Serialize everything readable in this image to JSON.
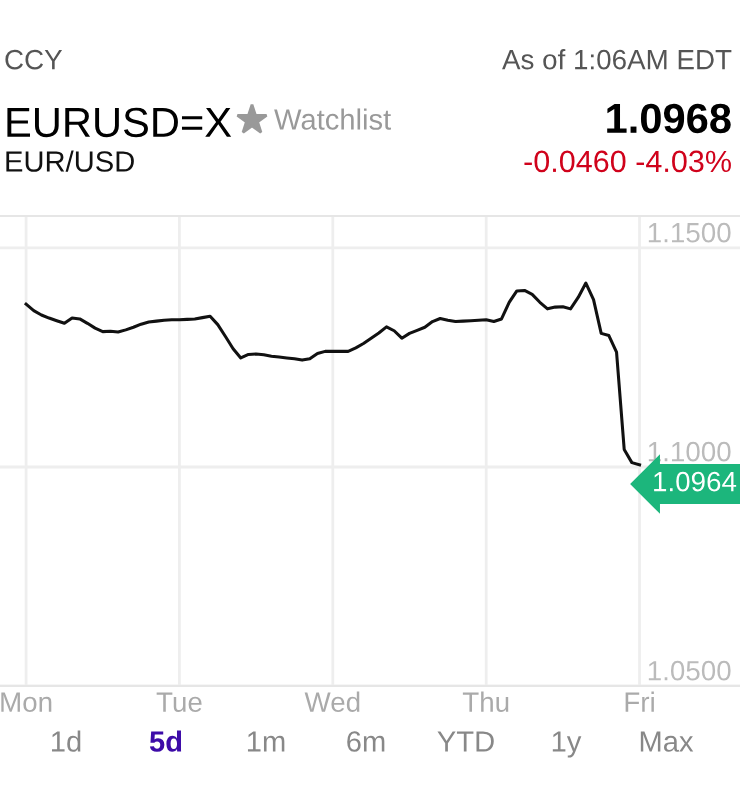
{
  "chart_data": {
    "type": "line",
    "title": "EURUSD=X",
    "subtitle": "EUR/USD",
    "annotations": [
      "CCY",
      "Watchlist",
      "As of 1:06AM EDT",
      "1.0968",
      "-0.0460 -4.03%",
      "1d",
      "5d",
      "1m",
      "6m",
      "YTD",
      "1y",
      "Max",
      "1.0964"
    ],
    "categories": [
      "Mon",
      null,
      null,
      null,
      null,
      null,
      null,
      null,
      null,
      null,
      null,
      null,
      null,
      null,
      null,
      null,
      null,
      null,
      null,
      null,
      "Tue",
      null,
      null,
      null,
      null,
      null,
      null,
      null,
      null,
      null,
      null,
      null,
      null,
      null,
      null,
      null,
      null,
      null,
      null,
      null,
      "Wed",
      null,
      null,
      null,
      null,
      null,
      null,
      null,
      null,
      null,
      null,
      null,
      null,
      null,
      null,
      null,
      null,
      null,
      null,
      null,
      "Thu",
      null,
      null,
      null,
      null,
      null,
      null,
      null,
      null,
      null,
      null,
      null,
      null,
      null,
      null,
      null,
      null,
      null,
      null,
      null,
      "Fri",
      null,
      null,
      null,
      null,
      null,
      null,
      null,
      null,
      null,
      null,
      null,
      null,
      null
    ],
    "series": [
      {
        "color": "#111111",
        "values": [
          1.1372,
          1.1357,
          1.1347,
          1.134,
          1.1334,
          1.1328,
          1.134,
          1.1338,
          1.1328,
          1.1317,
          1.1309,
          1.131,
          1.1308,
          1.1313,
          1.1319,
          1.1326,
          1.1331,
          1.1333,
          1.1335,
          1.1336,
          1.1336,
          1.1337,
          1.1338,
          1.1341,
          1.1344,
          1.1325,
          1.1298,
          1.127,
          1.1249,
          1.1257,
          1.1258,
          1.1256,
          1.1253,
          1.1251,
          1.1249,
          1.1247,
          1.1244,
          1.1247,
          1.1259,
          1.1264,
          1.1264,
          1.1264,
          1.1264,
          1.1272,
          1.1282,
          1.1294,
          1.1306,
          1.132,
          1.1311,
          1.1294,
          1.1305,
          1.1312,
          1.1319,
          1.1332,
          1.1339,
          1.1335,
          1.1332,
          1.1333,
          1.1334,
          1.1335,
          1.1336,
          1.1332,
          1.1338,
          1.1376,
          1.1402,
          1.1403,
          1.1394,
          1.1376,
          1.1361,
          1.1365,
          1.1366,
          1.1361,
          1.1387,
          1.142,
          1.1382,
          1.1305,
          1.13,
          1.1262,
          1.104,
          1.101,
          1.1005,
          null,
          null,
          null,
          null,
          null,
          null,
          null,
          null,
          null,
          null,
          null,
          null,
          null
        ]
      }
    ],
    "ylim": [
      1.05,
      1.1573
    ],
    "yticks": [
      {
        "value": 1.05,
        "label": "1.0500"
      },
      {
        "value": 1.1,
        "label": "1.1000"
      },
      {
        "value": 1.15,
        "label": "1.1500"
      }
    ],
    "grid": true,
    "marker": "none",
    "line_style": "solid"
  }
}
